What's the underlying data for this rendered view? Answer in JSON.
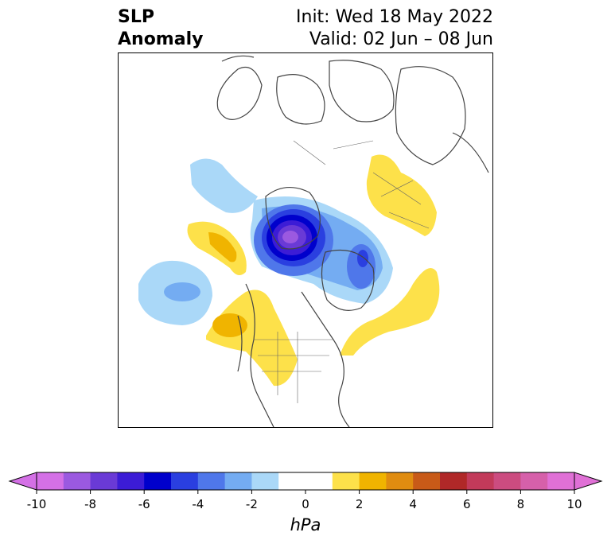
{
  "title": {
    "left_line1": "SLP",
    "left_line2": "Anomaly",
    "init": "Init: Wed 18 May 2022",
    "valid": "Valid: 02 Jun – 08 Jun"
  },
  "colorbar": {
    "unit": "hPa",
    "extend": "both",
    "min": -10,
    "max": 10,
    "step": 1,
    "tick_labels": [
      "-10",
      "-8",
      "-6",
      "-4",
      "-2",
      "0",
      "2",
      "4",
      "6",
      "8",
      "10"
    ],
    "tick_values": [
      -10,
      -8,
      -6,
      -4,
      -2,
      0,
      2,
      4,
      6,
      8,
      10
    ],
    "colors": [
      "#d470e6",
      "#9b59e0",
      "#6a3ad6",
      "#3c1cd6",
      "#0000cc",
      "#2a3fe0",
      "#4f77ea",
      "#74acf2",
      "#aad8f8",
      "#ffffff",
      "#ffffff",
      "#fde14a",
      "#f0b400",
      "#e08c10",
      "#c85a18",
      "#b02828",
      "#c23a5a",
      "#cc4c80",
      "#d660aa",
      "#e070d6"
    ],
    "under_color": "#d470e6",
    "over_color": "#e070d6"
  },
  "map": {
    "projection": "north-polar-stereographic",
    "field": "sea level pressure anomaly",
    "features": [
      {
        "name": "low-north-canada-deep",
        "sign": "negative",
        "peak_hpa": -10
      },
      {
        "name": "low-north-atlantic-greenland",
        "sign": "negative",
        "peak_hpa": -5
      },
      {
        "name": "low-north-pacific",
        "sign": "negative",
        "peak_hpa": -3
      },
      {
        "name": "low-alaska-siberia",
        "sign": "negative",
        "peak_hpa": -2
      },
      {
        "name": "high-gulf-of-alaska",
        "sign": "positive",
        "peak_hpa": 3
      },
      {
        "name": "high-western-usa",
        "sign": "positive",
        "peak_hpa": 2
      },
      {
        "name": "high-northeast-usa-atlantic",
        "sign": "positive",
        "peak_hpa": 2
      },
      {
        "name": "high-scandinavia-europe",
        "sign": "positive",
        "peak_hpa": 2
      }
    ]
  }
}
